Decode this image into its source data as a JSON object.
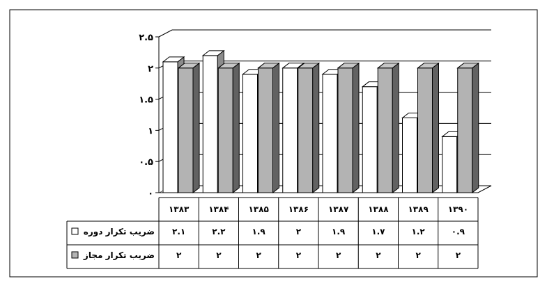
{
  "chart_data": {
    "type": "bar",
    "categories": [
      "۱۳۸۳",
      "۱۳۸۴",
      "۱۳۸۵",
      "۱۳۸۶",
      "۱۳۸۷",
      "۱۳۸۸",
      "۱۳۸۹",
      "۱۳۹۰"
    ],
    "series": [
      {
        "name": "ضریب تکرار دوره",
        "values": [
          2.1,
          2.2,
          1.9,
          2,
          1.9,
          1.7,
          1.2,
          0.9
        ],
        "labels": [
          "۲.۱",
          "۲.۲",
          "۱.۹",
          "۲",
          "۱.۹",
          "۱.۷",
          "۱.۲",
          "۰.۹"
        ],
        "color": "#ffffff"
      },
      {
        "name": "ضریب تکرار مجاز",
        "values": [
          2,
          2,
          2,
          2,
          2,
          2,
          2,
          2
        ],
        "labels": [
          "۲",
          "۲",
          "۲",
          "۲",
          "۲",
          "۲",
          "۲",
          "۲"
        ],
        "color": "#b3b3b3"
      }
    ],
    "yticks": [
      0,
      0.5,
      1,
      1.5,
      2,
      2.5
    ],
    "ytick_labels": [
      "۰",
      "۰.۵",
      "۱",
      "۱.۵",
      "۲",
      "۲.۵"
    ],
    "ylim": [
      0,
      2.5
    ],
    "title": "",
    "xlabel": "",
    "ylabel": "",
    "grid": true,
    "legend": "data-table",
    "style": "3d-clustered-column"
  }
}
